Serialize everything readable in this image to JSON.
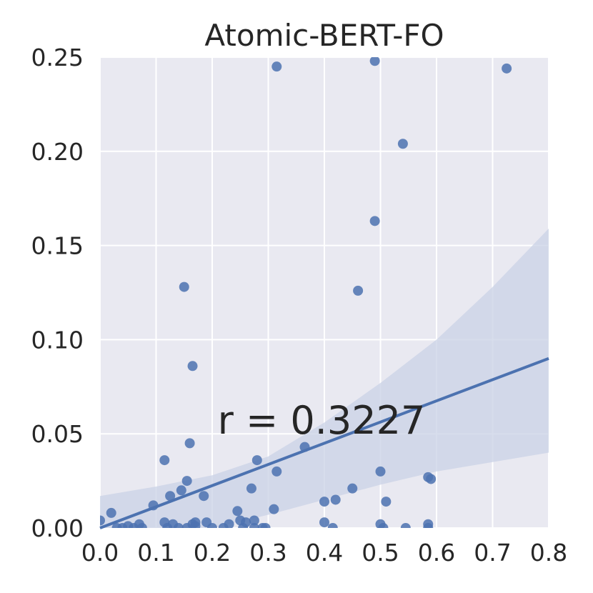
{
  "chart_data": {
    "type": "scatter",
    "title": "Atomic-BERT-FO",
    "xlabel": "",
    "ylabel": "",
    "xlim": [
      0.0,
      0.8
    ],
    "ylim": [
      0.0,
      0.25
    ],
    "x_ticks": [
      "0.0",
      "0.1",
      "0.2",
      "0.3",
      "0.4",
      "0.5",
      "0.6",
      "0.7",
      "0.8"
    ],
    "y_ticks": [
      "0.00",
      "0.05",
      "0.10",
      "0.15",
      "0.20",
      "0.25"
    ],
    "grid": true,
    "annotation": "r = 0.3227",
    "colors": {
      "background": "#e9e9f1",
      "grid": "#ffffff",
      "point": "#4c72b0",
      "line": "#4c72b0",
      "band": "#c9d2e6",
      "text": "#262626"
    },
    "series": [
      {
        "points": [
          [
            0.0,
            0.004
          ],
          [
            0.02,
            0.008
          ],
          [
            0.03,
            0.0
          ],
          [
            0.04,
            0.0
          ],
          [
            0.05,
            0.001
          ],
          [
            0.06,
            0.0
          ],
          [
            0.07,
            0.002
          ],
          [
            0.075,
            0.0
          ],
          [
            0.095,
            0.012
          ],
          [
            0.115,
            0.036
          ],
          [
            0.115,
            0.003
          ],
          [
            0.12,
            0.0
          ],
          [
            0.125,
            0.017
          ],
          [
            0.13,
            0.002
          ],
          [
            0.14,
            0.0
          ],
          [
            0.145,
            0.02
          ],
          [
            0.15,
            0.128
          ],
          [
            0.155,
            0.0
          ],
          [
            0.155,
            0.025
          ],
          [
            0.16,
            0.045
          ],
          [
            0.165,
            0.086
          ],
          [
            0.165,
            0.002
          ],
          [
            0.17,
            0.001
          ],
          [
            0.17,
            0.003
          ],
          [
            0.185,
            0.017
          ],
          [
            0.19,
            0.003
          ],
          [
            0.2,
            0.0
          ],
          [
            0.22,
            0.0
          ],
          [
            0.23,
            0.002
          ],
          [
            0.245,
            0.009
          ],
          [
            0.25,
            0.004
          ],
          [
            0.255,
            0.0
          ],
          [
            0.26,
            0.003
          ],
          [
            0.27,
            0.021
          ],
          [
            0.275,
            0.0
          ],
          [
            0.275,
            0.004
          ],
          [
            0.28,
            0.036
          ],
          [
            0.29,
            0.0
          ],
          [
            0.295,
            0.0
          ],
          [
            0.31,
            0.01
          ],
          [
            0.315,
            0.03
          ],
          [
            0.315,
            0.245
          ],
          [
            0.365,
            0.043
          ],
          [
            0.4,
            0.014
          ],
          [
            0.4,
            0.003
          ],
          [
            0.415,
            0.0
          ],
          [
            0.42,
            0.015
          ],
          [
            0.45,
            0.021
          ],
          [
            0.46,
            0.126
          ],
          [
            0.49,
            0.163
          ],
          [
            0.49,
            0.248
          ],
          [
            0.5,
            0.03
          ],
          [
            0.5,
            0.002
          ],
          [
            0.505,
            0.0
          ],
          [
            0.51,
            0.014
          ],
          [
            0.54,
            0.204
          ],
          [
            0.545,
            0.0
          ],
          [
            0.585,
            0.027
          ],
          [
            0.585,
            0.002
          ],
          [
            0.59,
            0.026
          ],
          [
            0.585,
            0.0
          ],
          [
            0.725,
            0.244
          ]
        ]
      }
    ],
    "regression": {
      "x": [
        0.0,
        0.8
      ],
      "y": [
        0.0,
        0.09
      ]
    },
    "confidence_band": {
      "x": [
        0.0,
        0.1,
        0.2,
        0.3,
        0.4,
        0.5,
        0.6,
        0.7,
        0.8
      ],
      "upper": [
        0.017,
        0.022,
        0.028,
        0.038,
        0.056,
        0.077,
        0.1,
        0.128,
        0.159
      ],
      "lower": [
        -0.012,
        -0.006,
        0.0,
        0.007,
        0.015,
        0.023,
        0.03,
        0.035,
        0.04
      ]
    }
  }
}
